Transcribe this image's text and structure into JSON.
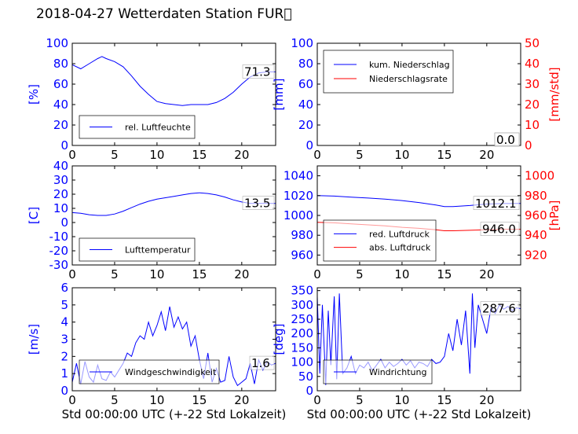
{
  "page_title": "2018-04-27 Wetterdaten Station FUR\u0000",
  "colors": {
    "primary": "#0000ff",
    "secondary": "#ff0000",
    "frame": "#000000"
  },
  "chart_data": [
    {
      "id": "humidity",
      "type": "line",
      "xlabel": "",
      "ylabel": "[%]",
      "xlim": [
        0,
        24
      ],
      "ylim": [
        0,
        100
      ],
      "yticks": [
        0,
        20,
        40,
        60,
        80,
        100
      ],
      "xticks": [
        0,
        5,
        10,
        15,
        20
      ],
      "legend": "lower-left",
      "annotation": "71.3",
      "series": [
        {
          "name": "rel. Luftfeuchte",
          "color": "#0000ff",
          "x": [
            0,
            1,
            2,
            3,
            3.5,
            4,
            5,
            6,
            7,
            8,
            9,
            10,
            11,
            12,
            13,
            14,
            15,
            16,
            17,
            18,
            19,
            20,
            21,
            22,
            23,
            24
          ],
          "y": [
            79,
            75,
            80,
            85,
            87,
            85,
            82,
            77,
            68,
            58,
            50,
            43,
            41,
            40,
            39,
            40,
            40,
            40,
            42,
            46,
            52,
            60,
            67,
            71,
            72,
            72
          ]
        }
      ]
    },
    {
      "id": "precipitation",
      "type": "line",
      "xlabel": "",
      "ylabel": "[mm]",
      "ylabel_right": "[mm/std]",
      "xlim": [
        0,
        24
      ],
      "ylim": [
        0,
        100
      ],
      "ylim_right": [
        0,
        50
      ],
      "yticks": [
        0,
        20,
        40,
        60,
        80,
        100
      ],
      "yticks_right": [
        0,
        10,
        20,
        30,
        40,
        50
      ],
      "xticks": [
        0,
        5,
        10,
        15,
        20
      ],
      "legend": "upper-left",
      "annotation": "0.0",
      "annotation_right": "0.0",
      "series": [
        {
          "name": "kum. Niederschlag",
          "color": "#0000ff",
          "axis": "left",
          "x": [
            0,
            24
          ],
          "y": [
            0,
            0
          ]
        },
        {
          "name": "Niederschlagsrate",
          "color": "#ff0000",
          "axis": "right",
          "x": [
            0,
            24
          ],
          "y": [
            0,
            0
          ]
        }
      ]
    },
    {
      "id": "temperature",
      "type": "line",
      "xlabel": "",
      "ylabel": "[C]",
      "xlim": [
        0,
        24
      ],
      "ylim": [
        -30,
        40
      ],
      "yticks": [
        -30,
        -20,
        -10,
        0,
        10,
        20,
        30,
        40
      ],
      "xticks": [
        0,
        5,
        10,
        15,
        20
      ],
      "legend": "lower-left",
      "annotation": "13.5",
      "series": [
        {
          "name": "Lufttemperatur",
          "color": "#0000ff",
          "x": [
            0,
            1,
            2,
            3,
            4,
            5,
            6,
            7,
            8,
            9,
            10,
            11,
            12,
            13,
            14,
            15,
            16,
            17,
            18,
            19,
            20,
            21,
            22,
            23,
            24
          ],
          "y": [
            7,
            6.5,
            5.5,
            5,
            5,
            6,
            8,
            10.5,
            13,
            15,
            16.5,
            17.5,
            18.5,
            19.5,
            20.5,
            21,
            20.5,
            19.5,
            18,
            16,
            14.5,
            13.5,
            13.5,
            13.5,
            13.5
          ]
        }
      ]
    },
    {
      "id": "pressure",
      "type": "line",
      "xlabel": "",
      "ylabel": "",
      "ylabel_right": "[hPa]",
      "xlim": [
        0,
        24
      ],
      "ylim": [
        950,
        1050
      ],
      "ylim_right": [
        910,
        1010
      ],
      "yticks": [
        960,
        980,
        1000,
        1020,
        1040
      ],
      "yticks_right": [
        920,
        940,
        960,
        980,
        1000
      ],
      "xticks": [
        0,
        5,
        10,
        15,
        20
      ],
      "legend": "lower-left",
      "annotation": "1012.1",
      "annotation_right": "946.0",
      "series": [
        {
          "name": "red. Luftdruck",
          "color": "#0000ff",
          "axis": "left",
          "x": [
            0,
            2,
            4,
            6,
            8,
            10,
            12,
            14,
            15,
            16,
            18,
            20,
            22,
            24
          ],
          "y": [
            1020,
            1019.5,
            1018.5,
            1017.5,
            1016.5,
            1015,
            1013,
            1010.5,
            1009,
            1009,
            1010,
            1011.5,
            1012,
            1012.1
          ]
        },
        {
          "name": "abs. Luftdruck",
          "color": "#ff0000",
          "axis": "right",
          "x": [
            0,
            2,
            4,
            6,
            8,
            10,
            12,
            14,
            15,
            16,
            18,
            20,
            22,
            24
          ],
          "y": [
            953,
            952.5,
            951.5,
            950.5,
            949.5,
            948,
            947,
            945.5,
            944.5,
            944.5,
            945,
            945.5,
            946,
            946
          ]
        }
      ]
    },
    {
      "id": "wind-speed",
      "type": "line",
      "xlabel": "Std 00:00:00 UTC (+-22 Std Lokalzeit)",
      "ylabel": "[m/s]",
      "xlim": [
        0,
        24
      ],
      "ylim": [
        0,
        6
      ],
      "yticks": [
        0,
        1,
        2,
        3,
        4,
        5,
        6
      ],
      "xticks": [
        0,
        5,
        10,
        15,
        20
      ],
      "legend": "lower-center",
      "annotation": "1.6",
      "series": [
        {
          "name": "Windgeschwindigkeit",
          "color": "#0000ff",
          "x": [
            0,
            0.5,
            1,
            1.5,
            2,
            2.5,
            3,
            3.5,
            4,
            4.5,
            5,
            5.5,
            6,
            6.5,
            7,
            7.5,
            8,
            8.5,
            9,
            9.5,
            10,
            10.5,
            11,
            11.5,
            12,
            12.5,
            13,
            13.5,
            14,
            14.5,
            15,
            15.5,
            16,
            16.5,
            17,
            17.5,
            18,
            18.5,
            19,
            19.5,
            20,
            20.5,
            21,
            21.5,
            22,
            22.5,
            23,
            23.5,
            24
          ],
          "y": [
            0.5,
            1.6,
            0.4,
            1.7,
            0.8,
            0.5,
            1.5,
            0.7,
            0.6,
            1.1,
            0.8,
            1.2,
            1.6,
            2.2,
            2.0,
            2.8,
            3.2,
            3.0,
            4.0,
            3.2,
            3.8,
            4.6,
            3.5,
            4.9,
            3.7,
            4.3,
            3.6,
            4.0,
            2.6,
            3.2,
            1.8,
            0.7,
            2.2,
            0.5,
            1.3,
            0.5,
            0.6,
            2.0,
            0.8,
            0.3,
            0.5,
            0.7,
            1.6,
            0.4,
            1.8,
            1.2,
            1.7,
            1.5,
            1.6
          ]
        }
      ]
    },
    {
      "id": "wind-direction",
      "type": "line",
      "xlabel": "Std 00:00:00 UTC (+-22 Std Lokalzeit)",
      "ylabel": "[deg]",
      "xlim": [
        0,
        24
      ],
      "ylim": [
        0,
        360
      ],
      "yticks": [
        0,
        50,
        100,
        150,
        200,
        250,
        300,
        350
      ],
      "xticks": [
        0,
        5,
        10,
        15,
        20
      ],
      "legend": "lower-left",
      "annotation": "287.6",
      "series": [
        {
          "name": "Windrichtung",
          "color": "#0000ff",
          "x": [
            0,
            0.3,
            0.6,
            1,
            1.3,
            1.6,
            2,
            2.3,
            2.6,
            3,
            3.5,
            4,
            4.5,
            5,
            5.5,
            6,
            6.5,
            7,
            7.5,
            8,
            8.5,
            9,
            9.5,
            10,
            10.5,
            11,
            11.5,
            12,
            12.5,
            13,
            13.5,
            14,
            14.5,
            15,
            15.5,
            16,
            16.5,
            17,
            17.5,
            18,
            18.3,
            18.6,
            19,
            19.5,
            20,
            20.5,
            21,
            21.5,
            22,
            22.5,
            23,
            23.5,
            24
          ],
          "y": [
            330,
            60,
            300,
            20,
            280,
            90,
            330,
            40,
            340,
            60,
            80,
            120,
            60,
            90,
            80,
            100,
            70,
            90,
            110,
            80,
            100,
            85,
            95,
            110,
            90,
            105,
            80,
            100,
            95,
            85,
            110,
            95,
            100,
            120,
            200,
            140,
            250,
            160,
            280,
            60,
            340,
            150,
            300,
            250,
            200,
            290,
            270,
            300,
            285,
            295,
            280,
            290,
            287
          ]
        }
      ]
    }
  ]
}
